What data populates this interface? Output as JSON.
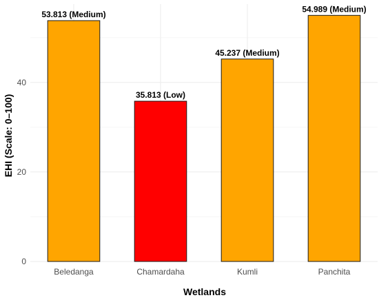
{
  "chart_data": {
    "type": "bar",
    "title": "",
    "xlabel": "Wetlands",
    "ylabel": "EHI (Scale: 0–100)",
    "categories": [
      "Beledanga",
      "Chamardaha",
      "Kumli",
      "Panchita"
    ],
    "values": [
      53.813,
      35.813,
      45.237,
      54.989
    ],
    "data_labels": [
      "53.813 (Medium)",
      "35.813 (Low)",
      "45.237 (Medium)",
      "54.989 (Medium)"
    ],
    "bar_colors": [
      "#FFA500",
      "#FF0000",
      "#FFA500",
      "#FFA500"
    ],
    "ylim": [
      0,
      57.5
    ],
    "yticks": [
      0,
      20,
      40
    ],
    "grid": true,
    "legend": "none"
  }
}
